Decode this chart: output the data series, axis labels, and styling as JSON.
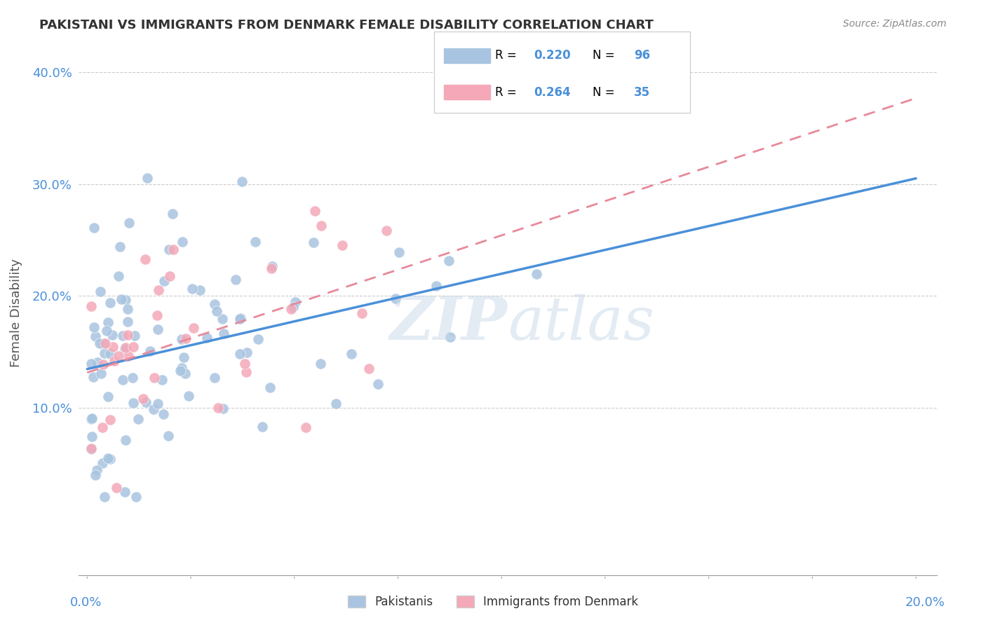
{
  "title": "PAKISTANI VS IMMIGRANTS FROM DENMARK FEMALE DISABILITY CORRELATION CHART",
  "source": "Source: ZipAtlas.com",
  "ylabel": "Female Disability",
  "xlim": [
    0.0,
    0.2
  ],
  "ylim": [
    -0.05,
    0.42
  ],
  "pakistani_R": 0.22,
  "pakistani_N": 96,
  "denmark_R": 0.264,
  "denmark_N": 35,
  "pakistani_color": "#a8c4e0",
  "denmark_color": "#f4a8b8",
  "pakistani_line_color": "#4a90d9",
  "denmark_line_color": "#e8899a",
  "watermark_color": "#c8d8e8",
  "grid_color": "#cccccc",
  "tick_color": "#4a90d9",
  "title_color": "#333333",
  "source_color": "#888888",
  "ylabel_color": "#555555"
}
